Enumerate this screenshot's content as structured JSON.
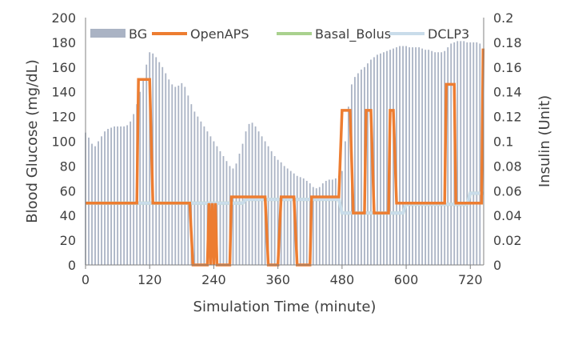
{
  "chart_data": {
    "type": "bar+line",
    "xlabel": "Simulation Time (minute)",
    "ylabel": "Blood Glucose (mg/dL)",
    "y2label": "Insulin (Unit)",
    "xlim": [
      0,
      745
    ],
    "ylim": [
      0,
      200
    ],
    "y2lim": [
      0,
      0.2
    ],
    "x_ticks": [
      "0",
      "120",
      "240",
      "360",
      "480",
      "600",
      "720"
    ],
    "y_ticks": [
      "0",
      "20",
      "40",
      "60",
      "80",
      "100",
      "120",
      "140",
      "160",
      "180",
      "200"
    ],
    "y2_ticks": [
      "0",
      "0.02",
      "0.04",
      "0.06",
      "0.08",
      "0.1",
      "0.12",
      "0.14",
      "0.16",
      "0.18",
      "0.2"
    ],
    "legend": {
      "placement": "top",
      "entries": [
        "BG",
        "OpenAPS",
        "Basal_Bolus",
        "DCLP3"
      ]
    },
    "grid": false,
    "colors": {
      "BG": "#aab3c4",
      "OpenAPS": "#ed7d31",
      "Basal_Bolus": "#a9d18e",
      "DCLP3": "#c9dcea",
      "axis": "#808080"
    },
    "series": [
      {
        "name": "BG",
        "type": "bar",
        "axis": "left",
        "x": [
          0,
          6,
          12,
          18,
          24,
          30,
          36,
          42,
          48,
          54,
          60,
          66,
          72,
          78,
          84,
          90,
          96,
          102,
          108,
          114,
          120,
          126,
          132,
          138,
          144,
          150,
          156,
          162,
          168,
          174,
          180,
          186,
          192,
          198,
          204,
          210,
          216,
          222,
          228,
          234,
          240,
          246,
          252,
          258,
          264,
          270,
          276,
          282,
          288,
          294,
          300,
          306,
          312,
          318,
          324,
          330,
          336,
          342,
          348,
          354,
          360,
          366,
          372,
          378,
          384,
          390,
          396,
          402,
          408,
          414,
          420,
          426,
          432,
          438,
          444,
          450,
          456,
          462,
          468,
          474,
          480,
          486,
          492,
          498,
          504,
          510,
          516,
          522,
          528,
          534,
          540,
          546,
          552,
          558,
          564,
          570,
          576,
          582,
          588,
          594,
          600,
          606,
          612,
          618,
          624,
          630,
          636,
          642,
          648,
          654,
          660,
          666,
          672,
          678,
          684,
          690,
          696,
          702,
          708,
          714,
          720,
          726,
          732,
          738
        ],
        "y": [
          107,
          103,
          98,
          96,
          100,
          104,
          108,
          110,
          111,
          112,
          112,
          112,
          112,
          113,
          116,
          122,
          130,
          140,
          150,
          162,
          172,
          171,
          168,
          164,
          160,
          155,
          150,
          146,
          144,
          145,
          147,
          144,
          137,
          130,
          124,
          120,
          116,
          112,
          108,
          104,
          100,
          96,
          92,
          88,
          84,
          80,
          78,
          82,
          90,
          98,
          108,
          114,
          115,
          112,
          108,
          104,
          100,
          96,
          92,
          88,
          85,
          83,
          80,
          78,
          76,
          74,
          72,
          71,
          70,
          68,
          66,
          63,
          62,
          63,
          66,
          68,
          69,
          69,
          70,
          72,
          76,
          100,
          128,
          146,
          152,
          155,
          158,
          160,
          163,
          166,
          168,
          170,
          171,
          172,
          173,
          174,
          175,
          176,
          177,
          177,
          177,
          176,
          176,
          176,
          176,
          175,
          174,
          174,
          173,
          172,
          172,
          172,
          173,
          176,
          179,
          180,
          181,
          181,
          181,
          180,
          180,
          180,
          180,
          179
        ]
      },
      {
        "name": "OpenAPS",
        "type": "step",
        "axis": "right",
        "x": [
          0,
          96,
          99,
          120,
          126,
          195,
          201,
          228,
          231,
          234,
          237,
          240,
          243,
          246,
          249,
          252,
          270,
          273,
          297,
          300,
          336,
          342,
          360,
          366,
          390,
          396,
          420,
          423,
          474,
          480,
          495,
          501,
          522,
          525,
          534,
          540,
          567,
          570,
          576,
          582,
          672,
          675,
          690,
          693,
          741,
          744
        ],
        "y": [
          0.05,
          0.05,
          0.15,
          0.15,
          0.05,
          0.05,
          0.0,
          0.0,
          0.05,
          0.0,
          0.05,
          0.0,
          0.05,
          0.0,
          0.0,
          0.0,
          0.0,
          0.055,
          0.055,
          0.055,
          0.055,
          0.0,
          0.0,
          0.055,
          0.055,
          0.0,
          0.0,
          0.055,
          0.055,
          0.125,
          0.125,
          0.042,
          0.042,
          0.125,
          0.125,
          0.042,
          0.042,
          0.125,
          0.125,
          0.05,
          0.05,
          0.146,
          0.146,
          0.05,
          0.05,
          0.175
        ]
      },
      {
        "name": "Basal_Bolus",
        "type": "step",
        "axis": "right",
        "x": [
          0,
          294,
          300,
          474,
          480,
          594,
          600,
          714,
          720,
          744
        ],
        "y": [
          0.05,
          0.05,
          0.053,
          0.053,
          0.042,
          0.042,
          0.049,
          0.049,
          0.058,
          0.058
        ]
      },
      {
        "name": "DCLP3",
        "type": "step",
        "axis": "right",
        "x": [
          0,
          294,
          300,
          474,
          480,
          594,
          600,
          714,
          720,
          744
        ],
        "y": [
          0.05,
          0.05,
          0.053,
          0.053,
          0.042,
          0.042,
          0.049,
          0.049,
          0.058,
          0.058
        ]
      }
    ]
  }
}
